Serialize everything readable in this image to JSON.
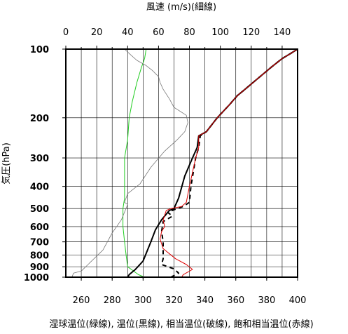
{
  "chart_data": {
    "type": "line",
    "top_axis_title": "風速 (m/s)(細線)",
    "left_axis_title": "気圧(hPa)",
    "bottom_caption": "湿球温位(緑線), 温位(黒線), 相当温位(破線), 飽和相当温位(赤線)",
    "bottom_axis": {
      "range": [
        250,
        400
      ],
      "ticks": [
        260,
        280,
        300,
        320,
        340,
        360,
        380,
        400
      ]
    },
    "top_axis": {
      "range": [
        0,
        150
      ],
      "ticks": [
        0,
        20,
        40,
        60,
        80,
        100,
        120,
        140
      ]
    },
    "pressure_axis": {
      "range": [
        1000,
        100
      ],
      "scale": "log",
      "ticks": [
        100,
        200,
        300,
        400,
        500,
        600,
        700,
        800,
        900,
        1000
      ]
    },
    "grid": true,
    "colors": {
      "wetbulb": "#22cc22",
      "theta": "#000000",
      "thetae": "#000000",
      "thetaes": "#dd0000",
      "wind": "#777777"
    },
    "series": [
      {
        "key": "wetbulb",
        "axis": "bottom",
        "style": "solid",
        "points": [
          [
            301,
            1000
          ],
          [
            297,
            975
          ],
          [
            290,
            900
          ],
          [
            289,
            800
          ],
          [
            288,
            700
          ],
          [
            287,
            600
          ],
          [
            287,
            500
          ],
          [
            288,
            450
          ],
          [
            288,
            400
          ],
          [
            288,
            300
          ],
          [
            290,
            250
          ],
          [
            291,
            200
          ],
          [
            293,
            170
          ],
          [
            296,
            140
          ],
          [
            299,
            120
          ],
          [
            301,
            110
          ],
          [
            302,
            100
          ]
        ]
      },
      {
        "key": "theta",
        "axis": "bottom",
        "style": "solid",
        "points": [
          [
            290,
            1000
          ],
          [
            291,
            975
          ],
          [
            295,
            925
          ],
          [
            300,
            850
          ],
          [
            305,
            700
          ],
          [
            308,
            620
          ],
          [
            312,
            560
          ],
          [
            317,
            510
          ],
          [
            320,
            500
          ],
          [
            323,
            450
          ],
          [
            327,
            360
          ],
          [
            332,
            300
          ],
          [
            335,
            270
          ],
          [
            336,
            240
          ],
          [
            341,
            230
          ],
          [
            348,
            200
          ],
          [
            356,
            175
          ],
          [
            361,
            160
          ],
          [
            366,
            150
          ],
          [
            374,
            135
          ],
          [
            383,
            120
          ],
          [
            390,
            110
          ],
          [
            395,
            105
          ],
          [
            400,
            100
          ]
        ]
      },
      {
        "key": "thetae",
        "axis": "bottom",
        "style": "dashed",
        "points": [
          [
            318,
            1000
          ],
          [
            323,
            960
          ],
          [
            320,
            920
          ],
          [
            312,
            880
          ],
          [
            313,
            830
          ],
          [
            313,
            760
          ],
          [
            313,
            700
          ],
          [
            312,
            630
          ],
          [
            313,
            570
          ],
          [
            319,
            540
          ],
          [
            316,
            520
          ],
          [
            322,
            500
          ],
          [
            326,
            490
          ],
          [
            330,
            470
          ],
          [
            331,
            400
          ],
          [
            334,
            300
          ],
          [
            336,
            270
          ],
          [
            337,
            240
          ],
          [
            341,
            230
          ],
          [
            348,
            200
          ],
          [
            356,
            175
          ],
          [
            361,
            160
          ],
          [
            366,
            150
          ],
          [
            374,
            135
          ],
          [
            383,
            120
          ],
          [
            390,
            110
          ],
          [
            395,
            105
          ],
          [
            400,
            100
          ]
        ]
      },
      {
        "key": "thetaes",
        "axis": "bottom",
        "style": "solid",
        "points": [
          [
            325,
            1000
          ],
          [
            326,
            975
          ],
          [
            332,
            925
          ],
          [
            328,
            880
          ],
          [
            321,
            830
          ],
          [
            313,
            750
          ],
          [
            311,
            680
          ],
          [
            312,
            630
          ],
          [
            314,
            600
          ],
          [
            313,
            560
          ],
          [
            315,
            510
          ],
          [
            318,
            500
          ],
          [
            325,
            490
          ],
          [
            328,
            470
          ],
          [
            330,
            400
          ],
          [
            334,
            300
          ],
          [
            336,
            270
          ],
          [
            336,
            240
          ],
          [
            341,
            230
          ],
          [
            348,
            200
          ],
          [
            356,
            175
          ],
          [
            361,
            160
          ],
          [
            366,
            150
          ],
          [
            374,
            135
          ],
          [
            383,
            120
          ],
          [
            390,
            110
          ],
          [
            395,
            105
          ],
          [
            400,
            100
          ]
        ]
      },
      {
        "key": "wind",
        "axis": "top",
        "style": "thin",
        "points": [
          [
            4,
            1000
          ],
          [
            5,
            960
          ],
          [
            10,
            940
          ],
          [
            24,
            760
          ],
          [
            30,
            640
          ],
          [
            36,
            560
          ],
          [
            40,
            480
          ],
          [
            38,
            470
          ],
          [
            40,
            430
          ],
          [
            48,
            390
          ],
          [
            55,
            330
          ],
          [
            64,
            280
          ],
          [
            72,
            250
          ],
          [
            77,
            230
          ],
          [
            79,
            210
          ],
          [
            78,
            195
          ],
          [
            70,
            180
          ],
          [
            67,
            165
          ],
          [
            63,
            150
          ],
          [
            61,
            140
          ],
          [
            60,
            132
          ],
          [
            58,
            128
          ],
          [
            56,
            124
          ],
          [
            52,
            118
          ],
          [
            46,
            112
          ],
          [
            42,
            106
          ],
          [
            38,
            100
          ]
        ]
      }
    ]
  }
}
